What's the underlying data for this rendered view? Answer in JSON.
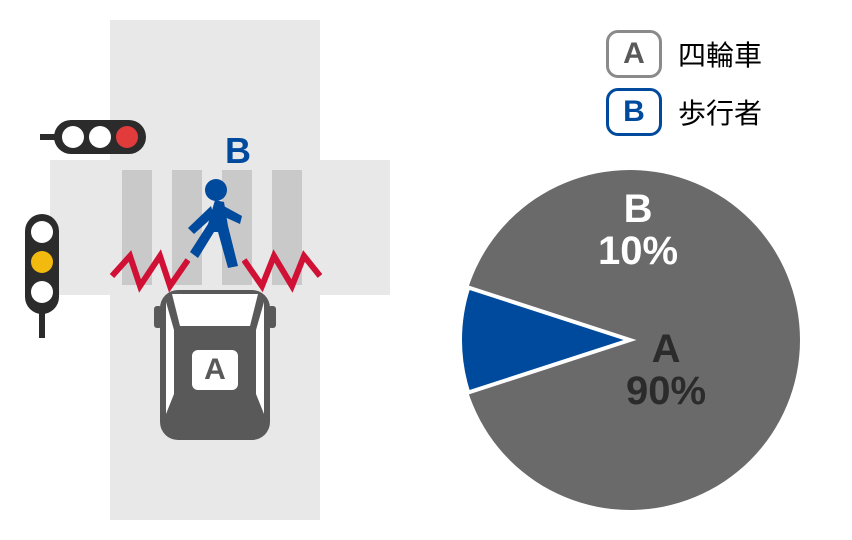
{
  "colors": {
    "road": "#e8e8e8",
    "stripe": "#c9c9c9",
    "carFill": "#595959",
    "carWindow": "#ffffff",
    "badgeText_A": "#595959",
    "pedestrian": "#004a9e",
    "zigzag": "#d01034",
    "signalBody": "#2b2b2b",
    "lightOff": "#ffffff",
    "lightRed": "#e23b3b",
    "lightYellow": "#f2b90f",
    "legendBorder_A": "#8a8a8a",
    "legendText_A": "#595959",
    "legendBorder_B": "#004a9e",
    "legendText_B": "#004a9e",
    "pie_A": "#6a6a6a",
    "pie_B": "#004a9e",
    "pieLabel_A": "#2b2b2b",
    "pieLabel_B": "#ffffff",
    "pieOutlineB": "#ffffff",
    "bg": "#ffffff"
  },
  "legend": {
    "A": {
      "letter": "A",
      "text": "四輪車"
    },
    "B": {
      "letter": "B",
      "text": "歩行者"
    }
  },
  "pedestrian_label": "B",
  "car_label": "A",
  "pie": {
    "type": "pie",
    "slices": [
      {
        "key": "B",
        "value": 10,
        "color": "#004a9e",
        "label_letter": "B",
        "label_pct": "10%",
        "label_color": "#ffffff"
      },
      {
        "key": "A",
        "value": 90,
        "color": "#6a6a6a",
        "label_letter": "A",
        "label_pct": "90%",
        "label_color": "#2b2b2b"
      }
    ],
    "start_angle_deg": -108,
    "letter_fontsize": 40,
    "pct_fontsize": 40
  },
  "signals": {
    "horizontal": {
      "lights": [
        "off",
        "off",
        "red"
      ]
    },
    "vertical": {
      "lights": [
        "off",
        "yellow",
        "off"
      ]
    }
  },
  "fontsize": {
    "legend_badge": 30,
    "legend_text": 28,
    "ped_label": 36,
    "car_badge": 30
  }
}
